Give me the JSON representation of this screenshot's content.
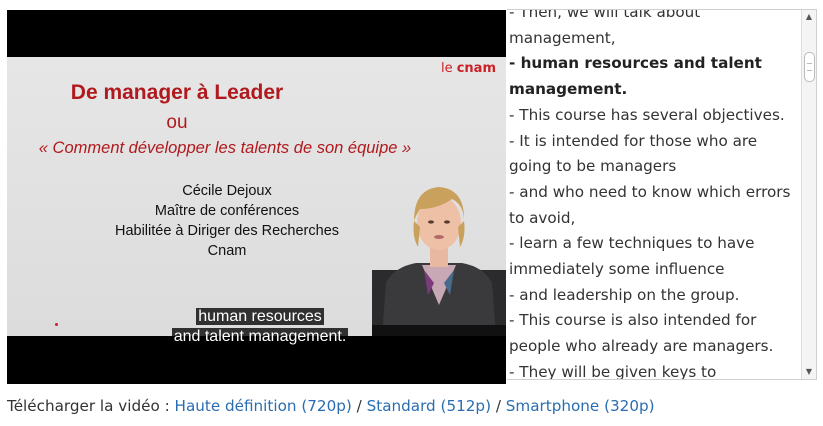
{
  "video": {
    "slide": {
      "logo_prefix": "le ",
      "logo_brand": "cnam",
      "title": "De manager à Leader",
      "ou": "ou",
      "subtitle": "« Comment développer les talents de son équipe »",
      "lines": [
        "Cécile Dejoux",
        "Maître de conférences",
        "Habilitée à Diriger des Recherches",
        "Cnam"
      ]
    },
    "captions": [
      "human resources",
      "and talent management."
    ]
  },
  "transcript": {
    "lines": [
      {
        "text": " - Then, we will talk about",
        "bold": false
      },
      {
        "text": "management,",
        "bold": false
      },
      {
        "text": " - human resources and talent",
        "bold": true
      },
      {
        "text": "management.",
        "bold": true
      },
      {
        "text": " - This course has several objectives.",
        "bold": false
      },
      {
        "text": " - It is intended for those who are",
        "bold": false
      },
      {
        "text": "going to be managers",
        "bold": false
      },
      {
        "text": " - and who need to know which errors",
        "bold": false
      },
      {
        "text": "to avoid,",
        "bold": false
      },
      {
        "text": " - learn a few techniques to have",
        "bold": false
      },
      {
        "text": "immediately some influence",
        "bold": false
      },
      {
        "text": " - and leadership on the group.",
        "bold": false
      },
      {
        "text": " - This course is also intended for",
        "bold": false
      },
      {
        "text": "people who already are managers.",
        "bold": false
      },
      {
        "text": " - They will be given keys to",
        "bold": false
      }
    ]
  },
  "download": {
    "label": "Télécharger la vidéo : ",
    "separator": " / ",
    "links": [
      "Haute définition (720p)",
      "Standard (512p)",
      "Smartphone (320p)"
    ]
  },
  "colors": {
    "link": "#2a6db0",
    "slide_red": "#b01a1e",
    "cnam_red": "#cc2027"
  }
}
